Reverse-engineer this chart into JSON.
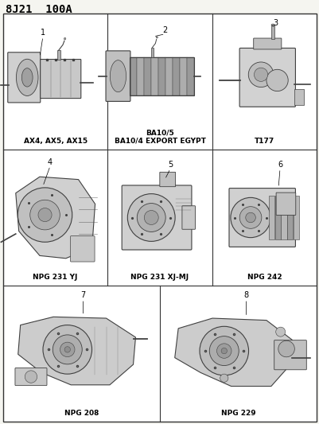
{
  "title": "8J21  100A",
  "title_fontsize": 10,
  "title_fontweight": "bold",
  "background_color": "#f5f5f0",
  "text_color": "#000000",
  "grid_line_color": "#333333",
  "label_fontsize": 6.5,
  "number_fontsize": 7,
  "fig_width": 4.02,
  "fig_height": 5.33,
  "dpi": 100,
  "cells": [
    {
      "row": 0,
      "col": 0,
      "number": "1",
      "label": "AX4, AX5, AX15"
    },
    {
      "row": 0,
      "col": 1,
      "number": "2",
      "label": "BA10/5\nBA10/4 EXPORT EGYPT"
    },
    {
      "row": 0,
      "col": 2,
      "number": "3",
      "label": "T177"
    },
    {
      "row": 1,
      "col": 0,
      "number": "4",
      "label": "NPG 231 YJ"
    },
    {
      "row": 1,
      "col": 1,
      "number": "5",
      "label": "NPG 231 XJ-MJ"
    },
    {
      "row": 1,
      "col": 2,
      "number": "6",
      "label": "NPG 242"
    },
    {
      "row": 2,
      "col": 0,
      "number": "7",
      "label": "NPG 208"
    },
    {
      "row": 2,
      "col": 1,
      "number": "8",
      "label": "NPG 229"
    }
  ]
}
